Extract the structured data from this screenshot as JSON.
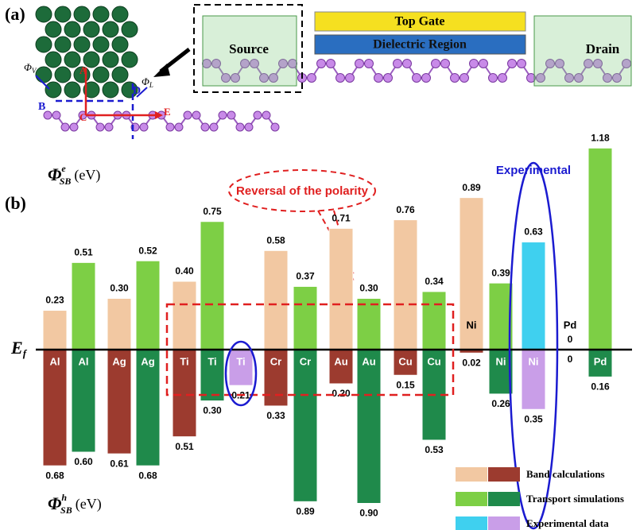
{
  "chart_data": {
    "type": "bar",
    "panel_a_label": "(a)",
    "panel_b_label": "(b)",
    "device_labels": {
      "top_gate": "Top Gate",
      "dielectric": "Dielectric Region",
      "source": "Source",
      "drain": "Drain"
    },
    "atom_labels": [
      "A",
      "B",
      "C",
      "D",
      "E"
    ],
    "phi_v": "Φ",
    "phi_v_sub": "V",
    "phi_l": "Φ",
    "phi_l_sub": "L",
    "y_label_top": "Φ",
    "y_label_top_sup": "e",
    "y_label_top_sub": "SB",
    "y_label_bottom": "Φ",
    "y_label_bottom_sup": "h",
    "y_label_bottom_sub": "SB",
    "unit": "(eV)",
    "fermi_label": "E",
    "fermi_sub": "f",
    "annotations": [
      "Reversal of the polarity",
      "Experimental"
    ],
    "categories": [
      "Al",
      "Al",
      "Ag",
      "Ag",
      "Ti",
      "Ti",
      "Ti",
      "Cr",
      "Cr",
      "Au",
      "Au",
      "Cu",
      "Cu",
      "Ni",
      "Ni",
      "Ni",
      "Pd",
      "Pd"
    ],
    "series": [
      {
        "name": "Band calculations",
        "color": "#f2c8a2",
        "hole_color": "#9c3b2f",
        "electron": [
          0.23,
          null,
          0.3,
          null,
          0.4,
          null,
          null,
          0.58,
          null,
          0.71,
          null,
          0.76,
          null,
          0.89,
          null,
          null,
          0,
          null
        ],
        "electron_labels": [
          "0.23",
          null,
          "0.30",
          null,
          "0.40",
          null,
          null,
          "0.58",
          null,
          "0.71",
          null,
          "0.76",
          null,
          "0.89",
          null,
          null,
          "0",
          null
        ],
        "hole": [
          0.68,
          null,
          0.61,
          null,
          0.51,
          null,
          null,
          0.33,
          null,
          0.2,
          null,
          0.15,
          null,
          0.02,
          null,
          null,
          0,
          null
        ],
        "hole_labels": [
          "0.68",
          null,
          "0.61",
          null,
          "0.51",
          null,
          null,
          "0.33",
          null,
          "0.20",
          null,
          "0.15",
          null,
          "0.02",
          null,
          null,
          "0",
          null
        ]
      },
      {
        "name": "Transport simulations",
        "color": "#7dcf45",
        "hole_color": "#1f8a4b",
        "electron": [
          null,
          0.51,
          null,
          0.52,
          null,
          0.75,
          null,
          null,
          0.37,
          null,
          0.3,
          null,
          0.34,
          null,
          0.39,
          null,
          null,
          1.18
        ],
        "electron_labels": [
          null,
          "0.51",
          null,
          "0.52",
          null,
          "0.75",
          null,
          null,
          "0.37",
          null,
          "0.30",
          null,
          "0.34",
          null,
          "0.39",
          null,
          null,
          "1.18"
        ],
        "hole": [
          null,
          0.6,
          null,
          0.68,
          null,
          0.3,
          null,
          null,
          0.89,
          null,
          0.9,
          null,
          0.53,
          null,
          0.26,
          null,
          null,
          0.16
        ],
        "hole_labels": [
          null,
          "0.60",
          null,
          "0.68",
          null,
          "0.30",
          null,
          null,
          "0.89",
          null,
          "0.90",
          null,
          "0.53",
          null,
          "0.26",
          null,
          null,
          "0.16"
        ]
      },
      {
        "name": "Experimental data",
        "color": "#3fd0ef",
        "hole_color": "#c99ee8",
        "electron": [
          null,
          null,
          null,
          null,
          null,
          null,
          null,
          null,
          null,
          null,
          null,
          null,
          null,
          null,
          null,
          0.63,
          null,
          null
        ],
        "electron_labels": [
          null,
          null,
          null,
          null,
          null,
          null,
          null,
          null,
          null,
          null,
          null,
          null,
          null,
          null,
          null,
          "0.63",
          null,
          null
        ],
        "hole": [
          null,
          null,
          null,
          null,
          null,
          null,
          0.21,
          null,
          null,
          null,
          null,
          null,
          null,
          null,
          null,
          0.35,
          null,
          null
        ],
        "hole_labels": [
          null,
          null,
          null,
          null,
          null,
          null,
          "0.21",
          null,
          null,
          null,
          null,
          null,
          null,
          null,
          null,
          "0.35",
          null,
          null
        ]
      }
    ]
  }
}
